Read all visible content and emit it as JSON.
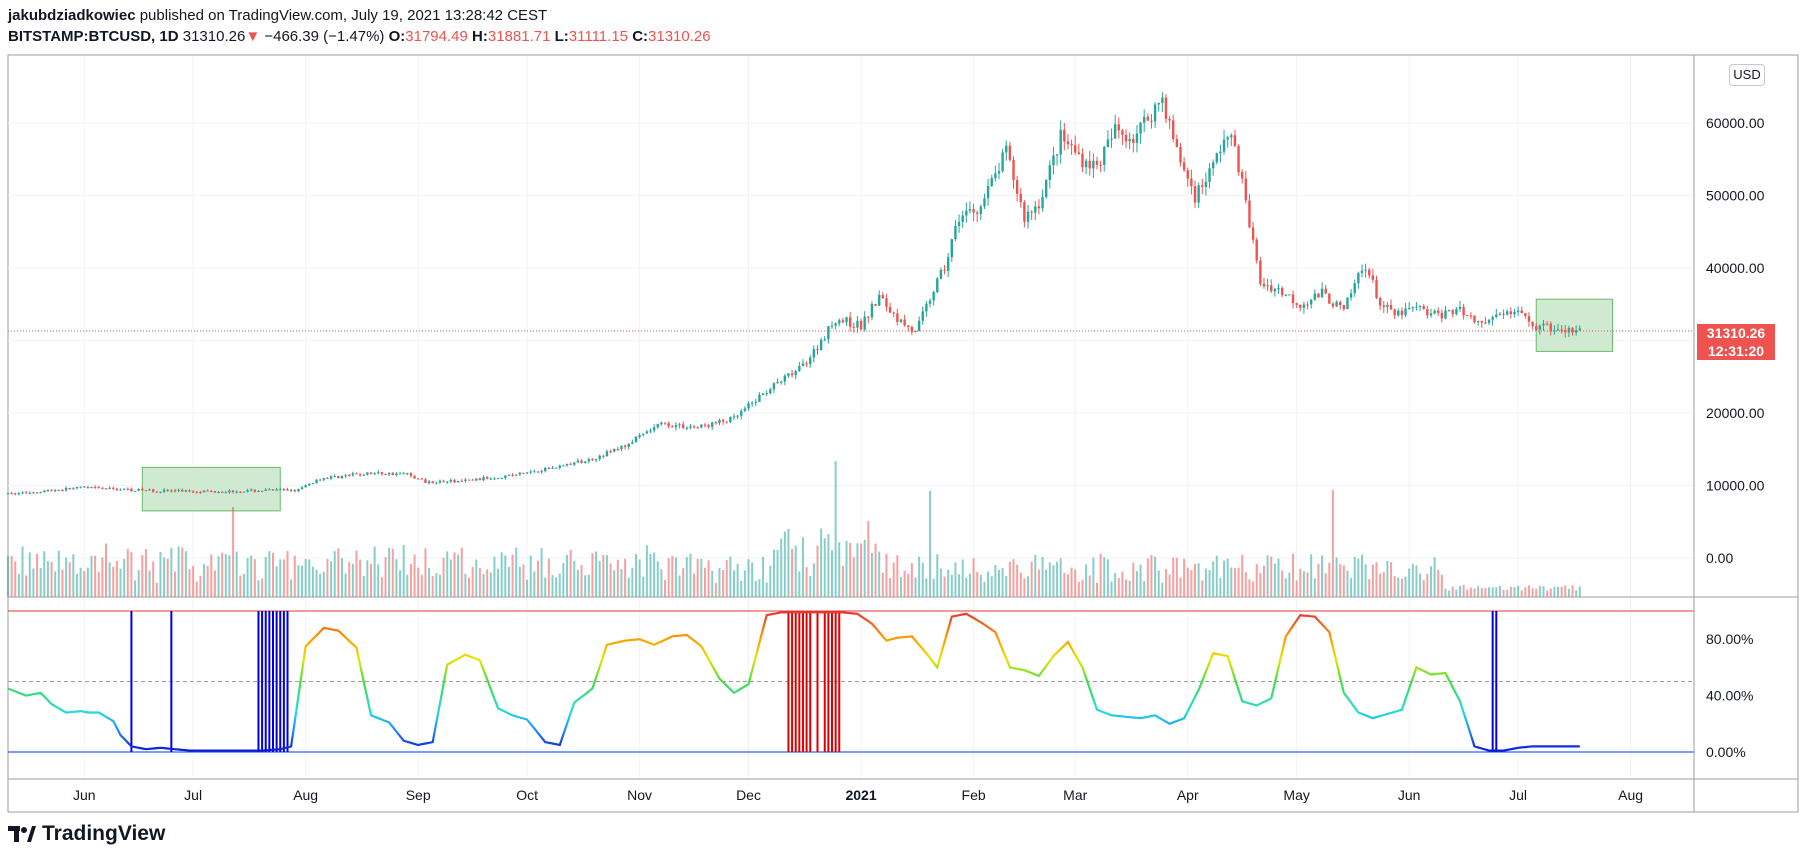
{
  "header": {
    "author": "jakubdziadkowiec",
    "published": "published on TradingView.com, July 19, 2021 13:28:42 CEST",
    "symbol": "BITSTAMP:BTCUSD, 1D",
    "last": "31310.26",
    "arrow": "▼",
    "change": "−466.39 (−1.47%)",
    "o_label": "O:",
    "o_value": "31794.49",
    "h_label": "H:",
    "h_value": "31881.71",
    "l_label": "L:",
    "l_value": "31111.15",
    "c_label": "C:",
    "c_value": "31310.26"
  },
  "price_axis": {
    "currency": "USD",
    "last_price": "31310.26",
    "countdown": "12:31:20"
  },
  "footer": {
    "brand": "TradingView"
  },
  "colors": {
    "up": "#26a69a",
    "down": "#ef5350",
    "box_fill": "#c8e6c9",
    "box_stroke": "#66bb6a",
    "osc_top": "#e53935",
    "osc_bottom": "#1a237e"
  },
  "chart_data": [
    {
      "type": "candlestick",
      "title": "BITSTAMP:BTCUSD, 1D",
      "ylim": [
        -5000,
        68000
      ],
      "y_ticks": [
        0,
        10000,
        20000,
        30000,
        40000,
        50000,
        60000
      ],
      "y_tick_labels": [
        "0.00",
        "10000.00",
        "20000.00",
        "30000.00",
        "40000.00",
        "50000.00",
        "60000.00"
      ],
      "x_tick_labels": [
        "Jun",
        "Jul",
        "Aug",
        "Sep",
        "Oct",
        "Nov",
        "Dec",
        "2021",
        "Feb",
        "Mar",
        "Apr",
        "May",
        "Jun",
        "Jul",
        "Aug"
      ],
      "x_tick_days": [
        21,
        51,
        82,
        113,
        143,
        174,
        204,
        235,
        266,
        294,
        325,
        355,
        386,
        416,
        447
      ],
      "day0": "2020-05-12",
      "price_anchors_days": [
        0,
        20,
        40,
        60,
        80,
        86,
        100,
        110,
        115,
        125,
        140,
        160,
        170,
        180,
        190,
        200,
        210,
        218,
        222,
        228,
        235,
        240,
        245,
        250,
        255,
        258,
        262,
        268,
        275,
        280,
        284,
        290,
        296,
        300,
        305,
        310,
        318,
        322,
        327,
        332,
        335,
        338,
        345,
        350,
        356,
        362,
        368,
        372,
        374,
        378,
        382,
        388,
        392,
        400,
        404,
        408,
        412,
        416,
        420,
        424,
        428,
        433
      ],
      "price_anchors_values": [
        8800,
        9700,
        9300,
        9200,
        9400,
        11000,
        11700,
        11600,
        10500,
        10600,
        11500,
        13500,
        15500,
        18500,
        18000,
        19200,
        23500,
        26000,
        28500,
        33000,
        32000,
        36000,
        33000,
        31000,
        37000,
        40000,
        47000,
        48500,
        56000,
        47000,
        49000,
        58000,
        55000,
        54000,
        59000,
        58000,
        63500,
        56000,
        50000,
        54000,
        58000,
        57000,
        38000,
        37000,
        35000,
        36500,
        34000,
        39000,
        40500,
        35000,
        33500,
        34500,
        33500,
        34000,
        33000,
        32500,
        34000,
        33500,
        32000,
        31700,
        31300,
        31310
      ],
      "last_day": 433,
      "highlight_boxes": [
        {
          "x_days": [
            37,
            75
          ],
          "y_values": [
            6500,
            12500
          ]
        },
        {
          "x_days": [
            421,
            442
          ],
          "y_values": [
            28500,
            35700
          ]
        }
      ],
      "last_price": 31310.26
    },
    {
      "type": "bar",
      "title": "Volume",
      "note": "daily volume bars, colored by candle direction"
    },
    {
      "type": "line",
      "title": "Oscillator",
      "ylim": [
        -5,
        102
      ],
      "y_ticks": [
        0,
        40,
        80
      ],
      "y_tick_labels": [
        "0.00%",
        "40.00%",
        "80.00%"
      ],
      "levels": [
        0,
        50,
        100
      ],
      "anchors_days": [
        0,
        5,
        9,
        12,
        16,
        20,
        22,
        25,
        29,
        31,
        34,
        38,
        42,
        46,
        50,
        55,
        60,
        65,
        70,
        75,
        78,
        82,
        87,
        91,
        96,
        100,
        105,
        109,
        113,
        117,
        121,
        126,
        130,
        135,
        139,
        143,
        148,
        152,
        156,
        161,
        165,
        170,
        174,
        178,
        183,
        187,
        191,
        196,
        200,
        204,
        209,
        213,
        217,
        221,
        225,
        230,
        234,
        238,
        242,
        245,
        249,
        253,
        256,
        260,
        264,
        268,
        272,
        276,
        280,
        284,
        288,
        292,
        296,
        300,
        304,
        308,
        312,
        316,
        320,
        324,
        328,
        332,
        336,
        340,
        344,
        348,
        352,
        356,
        360,
        364,
        368,
        372,
        376,
        380,
        384,
        388,
        392,
        396,
        400,
        404,
        408,
        412,
        416,
        420,
        424,
        428,
        433
      ],
      "anchors_values": [
        45,
        40,
        42,
        34,
        28,
        29,
        28,
        28,
        22,
        12,
        4,
        2,
        3,
        2,
        1,
        1,
        1,
        1,
        1,
        2,
        4,
        75,
        88,
        86,
        74,
        26,
        21,
        8,
        5,
        7,
        62,
        69,
        65,
        31,
        26,
        23,
        7,
        5,
        35,
        45,
        76,
        79,
        80,
        76,
        82,
        83,
        75,
        52,
        42,
        48,
        97,
        99,
        99,
        99,
        99,
        99,
        98,
        91,
        79,
        81,
        82,
        70,
        60,
        96,
        98,
        92,
        85,
        60,
        58,
        54,
        68,
        78,
        60,
        30,
        26,
        25,
        24,
        26,
        20,
        24,
        44,
        70,
        68,
        36,
        33,
        38,
        82,
        97,
        96,
        85,
        42,
        28,
        24,
        27,
        30,
        60,
        55,
        56,
        36,
        4,
        1,
        1,
        3,
        4,
        4,
        4,
        4
      ],
      "vertical_signal_days": [
        {
          "day": 34,
          "color": "blue"
        },
        {
          "day": 45,
          "color": "blue"
        },
        {
          "day": 69,
          "color": "blue"
        },
        {
          "day": 70,
          "color": "blue"
        },
        {
          "day": 71,
          "color": "blue"
        },
        {
          "day": 72,
          "color": "blue"
        },
        {
          "day": 73,
          "color": "blue"
        },
        {
          "day": 74,
          "color": "blue"
        },
        {
          "day": 75,
          "color": "blue"
        },
        {
          "day": 76,
          "color": "blue"
        },
        {
          "day": 77,
          "color": "blue"
        },
        {
          "day": 215,
          "color": "red"
        },
        {
          "day": 216,
          "color": "red"
        },
        {
          "day": 217,
          "color": "red"
        },
        {
          "day": 218,
          "color": "red"
        },
        {
          "day": 219,
          "color": "red"
        },
        {
          "day": 220,
          "color": "red"
        },
        {
          "day": 221,
          "color": "red"
        },
        {
          "day": 223,
          "color": "red"
        },
        {
          "day": 225,
          "color": "red"
        },
        {
          "day": 226,
          "color": "red"
        },
        {
          "day": 227,
          "color": "red"
        },
        {
          "day": 228,
          "color": "red"
        },
        {
          "day": 229,
          "color": "red"
        },
        {
          "day": 409,
          "color": "blue"
        },
        {
          "day": 410,
          "color": "blue"
        }
      ]
    }
  ]
}
